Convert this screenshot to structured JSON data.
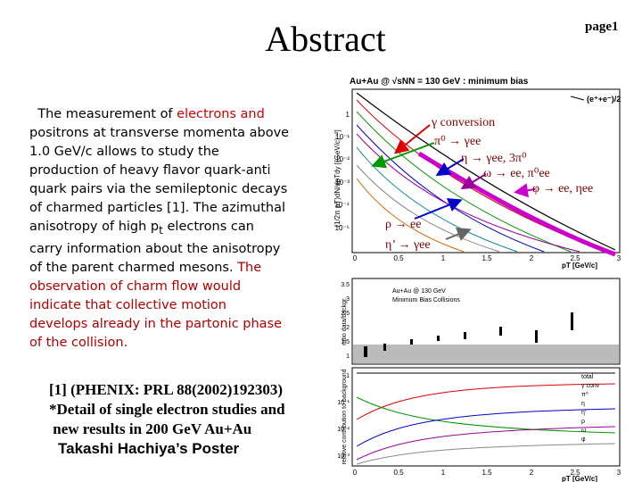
{
  "header": {
    "title": "Abstract",
    "page": "page1"
  },
  "abstract": {
    "lines": [
      [
        {
          "text": "  The measurement of ",
          "color": "#000000"
        },
        {
          "text": "electrons and",
          "color": "#cc0000"
        }
      ],
      [
        {
          "text": "positrons at transverse momenta above",
          "color": "#000000"
        }
      ],
      [
        {
          "text": "1.0 GeV/c allows to study the",
          "color": "#000000"
        }
      ],
      [
        {
          "text": "production of heavy flavor quark-anti",
          "color": "#000000"
        }
      ],
      [
        {
          "text": "quark pairs via the semileptonic decays",
          "color": "#000000"
        }
      ],
      [
        {
          "text": "of charmed particles [1]. The azimuthal",
          "color": "#000000"
        }
      ],
      [
        {
          "text": "anisotropy of high p",
          "color": "#000000"
        },
        {
          "text": "t",
          "color": "#000000",
          "sub": true
        },
        {
          "text": " electrons can",
          "color": "#000000"
        }
      ],
      [
        {
          "text": "carry information about the anisotropy",
          "color": "#000000"
        }
      ],
      [
        {
          "text": "of the parent charmed mesons. ",
          "color": "#000000"
        },
        {
          "text": "The",
          "color": "#b00000"
        }
      ],
      [
        {
          "text": "observation of charm flow would",
          "color": "#b00000"
        }
      ],
      [
        {
          "text": "indicate that collective motion",
          "color": "#b00000"
        }
      ],
      [
        {
          "text": "develops already in the partonic phase",
          "color": "#b00000"
        }
      ],
      [
        {
          "text": "of the collision.",
          "color": "#b00000"
        }
      ]
    ]
  },
  "references": {
    "serif_lines": [
      "[1] (PHENIX: PRL 88(2002)192303)",
      "*Detail of single electron studies and",
      " new results in 200 GeV Au+Au"
    ],
    "sans_line": "Takashi Hachiya’s Poster"
  },
  "figure": {
    "title": "Au+Au @ √sNN = 130 GeV : minimum bias",
    "legend": "(e⁺+e⁻)/2",
    "top_ylabel": "(1/2π pT)dN/dpTdy [(GeV/c)⁻²]",
    "top_yticks": [
      "1",
      "10⁻¹",
      "10⁻²",
      "10⁻³",
      "10⁻⁴",
      "10⁻⁵"
    ],
    "xticks": [
      "0",
      "0.5",
      "1",
      "1.5",
      "2",
      "2.5",
      "3"
    ],
    "xlabel": "pT [GeV/c]",
    "annotations": [
      "γ conversion",
      "π⁰ → γee",
      "η → γee, 3π⁰",
      "ω → ee, π⁰ee",
      "φ → ee, ηee",
      "ρ → ee",
      "η’ → γee"
    ],
    "mid_ylabel": "ratio data/backgr.",
    "mid_yticks": [
      "3.5",
      "3",
      "2.5",
      "2",
      "1.5",
      "1"
    ],
    "mid_texts": [
      "Au+Au @ 130 GeV",
      "Minimum Bias Collisions"
    ],
    "bottom_ylabel": "relative contribution to background",
    "bottom_yticks": [
      "1",
      "10⁻¹",
      "10⁻²",
      "10⁻³"
    ],
    "bottom_legend": [
      "total",
      "γ conv",
      "π⁰",
      "η",
      "η’",
      "ρ",
      "ω",
      "φ"
    ]
  }
}
